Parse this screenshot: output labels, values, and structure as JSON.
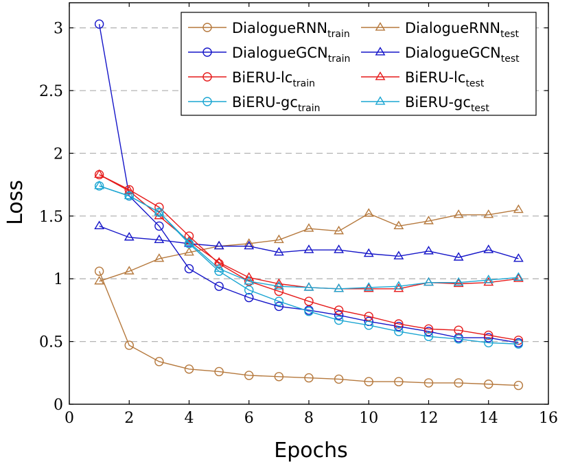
{
  "chart_data": {
    "type": "line",
    "title": "",
    "xlabel": "Epochs",
    "ylabel": "Loss",
    "xlim": [
      0,
      16
    ],
    "ylim": [
      0,
      3.2
    ],
    "xticks": [
      0,
      2,
      4,
      6,
      8,
      10,
      12,
      14,
      16
    ],
    "yticks": [
      0,
      0.5,
      1,
      1.5,
      2,
      2.5,
      3
    ],
    "xtick_labels": [
      "0",
      "2",
      "4",
      "6",
      "8",
      "10",
      "12",
      "14",
      "16"
    ],
    "ytick_labels": [
      "0",
      "0.5",
      "1",
      "1.5",
      "2",
      "2.5",
      "3"
    ],
    "grid": "horizontal dashed",
    "legend_position": "top-right",
    "x": [
      1,
      2,
      3,
      4,
      5,
      6,
      7,
      8,
      9,
      10,
      11,
      12,
      13,
      14,
      15
    ],
    "series": [
      {
        "name": "DialogueRNN",
        "subscript": "train",
        "color": "#b5783c",
        "marker": "circle",
        "values": [
          1.06,
          0.47,
          0.34,
          0.28,
          0.26,
          0.23,
          0.22,
          0.21,
          0.2,
          0.18,
          0.18,
          0.17,
          0.17,
          0.16,
          0.15
        ]
      },
      {
        "name": "DialogueRNN",
        "subscript": "test",
        "color": "#b5783c",
        "marker": "triangle",
        "values": [
          0.98,
          1.06,
          1.16,
          1.21,
          1.26,
          1.28,
          1.31,
          1.4,
          1.38,
          1.52,
          1.42,
          1.46,
          1.51,
          1.51,
          1.55
        ]
      },
      {
        "name": "DialogueGCN",
        "subscript": "train",
        "color": "#1414c8",
        "marker": "circle",
        "values": [
          3.03,
          1.66,
          1.42,
          1.08,
          0.94,
          0.85,
          0.78,
          0.75,
          0.71,
          0.66,
          0.62,
          0.58,
          0.53,
          0.53,
          0.49
        ]
      },
      {
        "name": "DialogueGCN",
        "subscript": "test",
        "color": "#1414c8",
        "marker": "triangle",
        "values": [
          1.42,
          1.33,
          1.31,
          1.28,
          1.26,
          1.26,
          1.21,
          1.23,
          1.23,
          1.2,
          1.18,
          1.22,
          1.17,
          1.23,
          1.16
        ]
      },
      {
        "name": "BiERU-lc",
        "subscript": "train",
        "color": "#e51a1a",
        "marker": "circle",
        "values": [
          1.83,
          1.71,
          1.57,
          1.34,
          1.12,
          0.98,
          0.9,
          0.82,
          0.75,
          0.7,
          0.64,
          0.6,
          0.59,
          0.55,
          0.51
        ]
      },
      {
        "name": "BiERU-lc",
        "subscript": "test",
        "color": "#e51a1a",
        "marker": "triangle",
        "values": [
          1.83,
          1.7,
          1.5,
          1.3,
          1.13,
          1.01,
          0.96,
          0.93,
          0.92,
          0.92,
          0.92,
          0.97,
          0.96,
          0.97,
          1.0
        ]
      },
      {
        "name": "BiERU-gc",
        "subscript": "train",
        "color": "#1aa5d2",
        "marker": "circle",
        "values": [
          1.74,
          1.66,
          1.53,
          1.28,
          1.06,
          0.91,
          0.82,
          0.74,
          0.67,
          0.63,
          0.58,
          0.54,
          0.52,
          0.49,
          0.48
        ]
      },
      {
        "name": "BiERU-gc",
        "subscript": "test",
        "color": "#1aa5d2",
        "marker": "triangle",
        "values": [
          1.74,
          1.66,
          1.53,
          1.29,
          1.08,
          0.98,
          0.94,
          0.93,
          0.92,
          0.93,
          0.94,
          0.97,
          0.97,
          0.99,
          1.01
        ]
      }
    ]
  }
}
